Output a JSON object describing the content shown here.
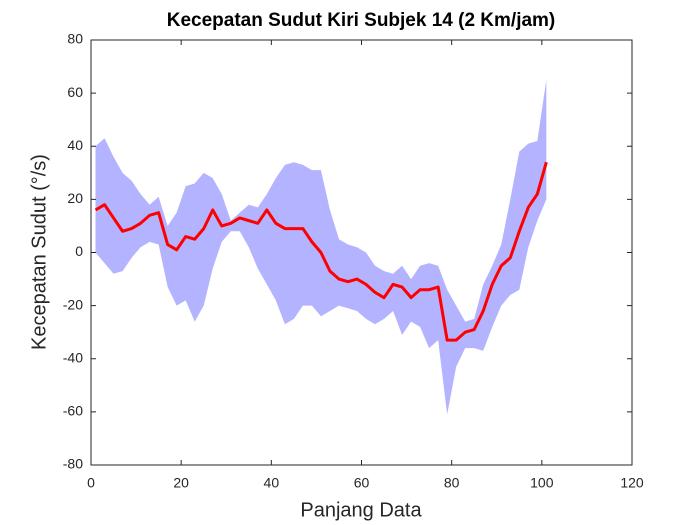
{
  "chart_data": {
    "type": "line",
    "title": "Kecepatan Sudut Kiri Subjek 14 (2 Km/jam)",
    "xlabel": "Panjang Data",
    "ylabel": "Kecepatan Sudut (°/s)",
    "x": [
      1,
      3,
      5,
      7,
      9,
      11,
      13,
      15,
      17,
      19,
      21,
      23,
      25,
      27,
      29,
      31,
      33,
      35,
      37,
      39,
      41,
      43,
      45,
      47,
      49,
      51,
      53,
      55,
      57,
      59,
      61,
      63,
      65,
      67,
      69,
      71,
      73,
      75,
      77,
      79,
      81,
      83,
      85,
      87,
      89,
      91,
      93,
      95,
      97,
      99,
      101
    ],
    "band": {
      "color": "#b3b3ff",
      "upper": [
        40,
        43,
        36,
        30,
        27,
        22,
        18,
        21,
        10,
        15,
        25,
        26,
        30,
        28,
        22,
        12,
        15,
        18,
        17,
        22,
        28,
        33,
        34,
        33,
        31,
        31,
        16,
        5,
        3,
        2,
        0,
        -5,
        -7,
        -8,
        -5,
        -10,
        -5,
        -4,
        -5,
        -14,
        -20,
        -26,
        -25,
        -12,
        -5,
        3,
        20,
        38,
        41,
        42,
        65
      ],
      "lower": [
        0,
        -4,
        -8,
        -7,
        -2,
        2,
        4,
        3,
        -13,
        -20,
        -18,
        -26,
        -20,
        -6,
        4,
        8,
        8,
        2,
        -6,
        -12,
        -18,
        -27,
        -25,
        -20,
        -20,
        -24,
        -22,
        -20,
        -21,
        -22,
        -25,
        -27,
        -25,
        -22,
        -31,
        -26,
        -28,
        -36,
        -33,
        -61,
        -43,
        -36,
        -36,
        -37,
        -28,
        -20,
        -16,
        -14,
        2,
        12,
        20
      ]
    },
    "series": [
      {
        "color": "#ff0000",
        "values": [
          16,
          18,
          13,
          8,
          9,
          11,
          14,
          15,
          3,
          1,
          6,
          5,
          9,
          16,
          10,
          11,
          13,
          12,
          11,
          16,
          11,
          9,
          9,
          9,
          4,
          0,
          -7,
          -10,
          -11,
          -10,
          -12,
          -15,
          -17,
          -12,
          -13,
          -17,
          -14,
          -14,
          -13,
          -33,
          -33,
          -30,
          -29,
          -22,
          -12,
          -5,
          -2,
          8,
          17,
          22,
          34
        ]
      }
    ],
    "xlim": [
      0,
      120
    ],
    "xticks": [
      0,
      20,
      40,
      60,
      80,
      100,
      120
    ],
    "ylim": [
      -80,
      80
    ],
    "yticks": [
      -80,
      -60,
      -40,
      -20,
      0,
      20,
      40,
      60,
      80
    ]
  }
}
